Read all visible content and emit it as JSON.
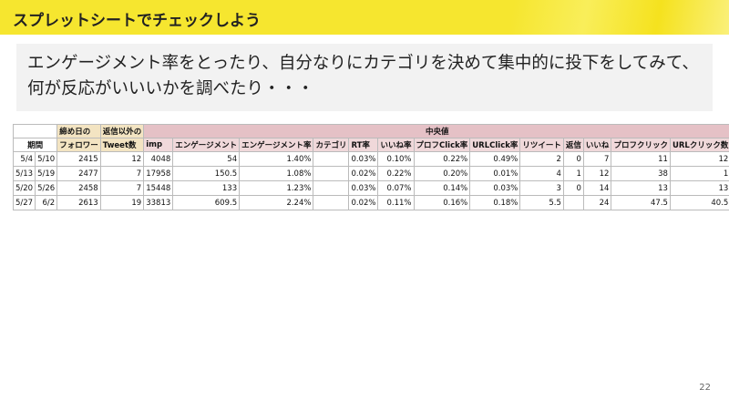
{
  "header": {
    "title": "スプレットシートでチェックしよう"
  },
  "body": {
    "text": "エンゲージメント率をとったり、自分なりにカテゴリを決めて集中的に投下をしてみて、何が反応がいいいかを調べたり・・・"
  },
  "table": {
    "header_top": [
      "締め日の",
      "返信以外の",
      "中央値"
    ],
    "header": [
      "期間",
      "フォロワー",
      "Tweet数",
      "imp",
      "エンゲージメント",
      "エンゲージメント率",
      "カテゴリ",
      "RT率",
      "いいね率",
      "プロフClick率",
      "URLClick率",
      "リツイート",
      "返信",
      "いいね",
      "プロフクリック",
      "URLクリック数"
    ],
    "rows": [
      [
        "5/4",
        "5/10",
        "2415",
        "12",
        "4048",
        "54",
        "1.40%",
        null,
        "0.03%",
        "0.10%",
        "0.22%",
        "0.49%",
        "2",
        "0",
        "7",
        "11",
        "12"
      ],
      [
        "5/13",
        "5/19",
        "2477",
        "7",
        "17958",
        "150.5",
        "1.08%",
        null,
        "0.02%",
        "0.22%",
        "0.20%",
        "0.01%",
        "4",
        "1",
        "12",
        "38",
        "1"
      ],
      [
        "5/20",
        "5/26",
        "2458",
        "7",
        "15448",
        "133",
        "1.23%",
        null,
        "0.03%",
        "0.07%",
        "0.14%",
        "0.03%",
        "3",
        "0",
        "14",
        "13",
        "13"
      ],
      [
        "5/27",
        "6/2",
        "2613",
        "19",
        "33813",
        "609.5",
        "2.24%",
        null,
        "0.02%",
        "0.11%",
        "0.16%",
        "0.18%",
        "5.5",
        null,
        "24",
        "47.5",
        "40.5"
      ]
    ]
  },
  "footer": {
    "page": "22"
  }
}
